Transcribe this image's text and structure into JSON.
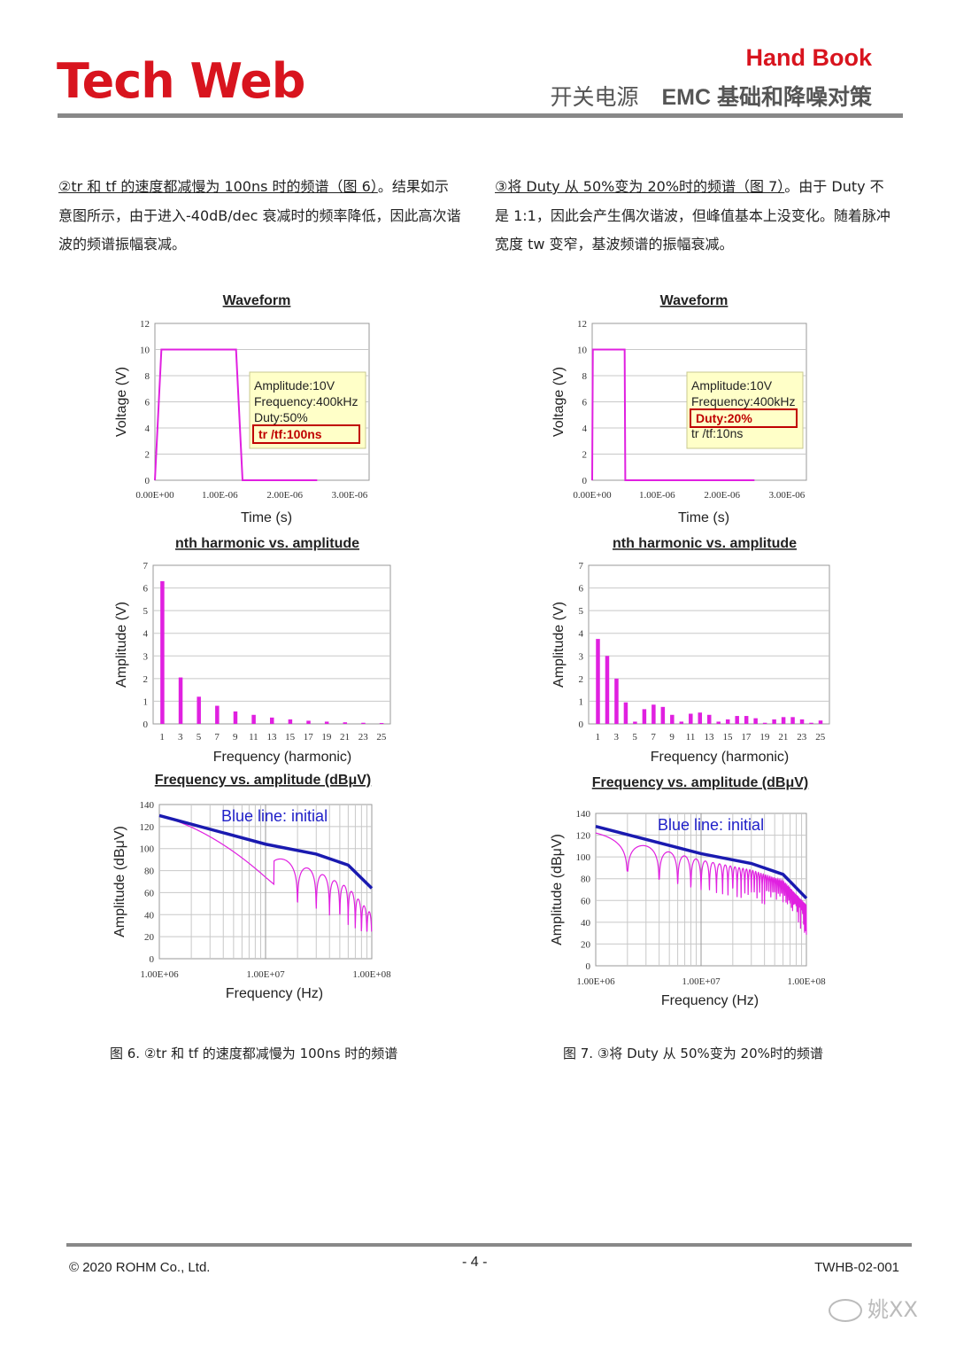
{
  "header": {
    "logo": "Tech Web",
    "title": "Hand Book",
    "subtitle_a": "开关电源",
    "subtitle_b": "EMC 基础和降噪对策"
  },
  "paragraphs": {
    "left": {
      "lead": "②tr 和 tf 的速度都减慢为 100ns 时的频谱（图 6）",
      "body": "。结果如示意图所示，由于进入-40dB/dec 衰减时的频率降低，因此高次谐波的频谱振幅衰减。"
    },
    "right": {
      "lead": "③将 Duty 从 50%变为 20%时的频谱（图 7）",
      "body": "。由于 Duty 不是 1:1，因此会产生偶次谐波，但峰值基本上没变化。随着脉冲宽度 tw 变窄，基波频谱的振幅衰减。"
    }
  },
  "figures": [
    {
      "caption": "图 6. ②tr 和 tf 的速度都减慢为 100ns 时的频谱",
      "waveform": {
        "title": "Waveform",
        "xlabel": "Time (s)",
        "ylabel": "Voltage (V)",
        "yticks": [
          "12",
          "10",
          "8",
          "6",
          "4",
          "2",
          "0"
        ],
        "xticks": [
          "0.00E+00",
          "1.00E-06",
          "2.00E-06",
          "3.00E-06"
        ],
        "ann": [
          "Amplitude:10V",
          "Frequency:400kHz",
          "Duty:50%"
        ],
        "ann_hi": "tr /tf:100ns"
      },
      "harmonic": {
        "title": "nth harmonic vs. amplitude",
        "xlabel": "Frequency (harmonic)",
        "ylabel": "Amplitude (V)",
        "yticks": [
          "7",
          "6",
          "5",
          "4",
          "3",
          "2",
          "1",
          "0"
        ],
        "xticks": [
          "1",
          "3",
          "5",
          "7",
          "9",
          "11",
          "13",
          "15",
          "17",
          "19",
          "21",
          "23",
          "25"
        ]
      },
      "spectrum": {
        "title": "Frequency vs. amplitude (dBμV)",
        "xlabel": "Frequency (Hz)",
        "ylabel": "Amplitude (dBμV)",
        "yticks": [
          "140",
          "120",
          "100",
          "80",
          "60",
          "40",
          "20",
          "0"
        ],
        "xticks": [
          "1.00E+06",
          "1.00E+07",
          "1.00E+08"
        ],
        "legend": "Blue line: initial"
      }
    },
    {
      "caption": "图 7. ③将 Duty 从 50%变为 20%时的频谱",
      "waveform": {
        "title": "Waveform",
        "xlabel": "Time (s)",
        "ylabel": "Voltage (V)",
        "yticks": [
          "12",
          "10",
          "8",
          "6",
          "4",
          "2",
          "0"
        ],
        "xticks": [
          "0.00E+00",
          "1.00E-06",
          "2.00E-06",
          "3.00E-06"
        ],
        "ann": [
          "Amplitude:10V",
          "Frequency:400kHz",
          "tr /tf:10ns"
        ],
        "ann_hi": "Duty:20%"
      },
      "harmonic": {
        "title": "nth harmonic vs. amplitude",
        "xlabel": "Frequency (harmonic)",
        "ylabel": "Amplitude (V)",
        "yticks": [
          "7",
          "6",
          "5",
          "4",
          "3",
          "2",
          "1",
          "0"
        ],
        "xticks": [
          "1",
          "3",
          "5",
          "7",
          "9",
          "11",
          "13",
          "15",
          "17",
          "19",
          "21",
          "23",
          "25"
        ]
      },
      "spectrum": {
        "title": "Frequency vs. amplitude (dBμV)",
        "xlabel": "Frequency (Hz)",
        "ylabel": "Amplitude (dBμV)",
        "yticks": [
          "140",
          "120",
          "100",
          "80",
          "60",
          "40",
          "20",
          "0"
        ],
        "xticks": [
          "1.00E+06",
          "1.00E+07",
          "1.00E+08"
        ],
        "legend": "Blue line: initial"
      }
    }
  ],
  "chart_data": [
    {
      "type": "line",
      "chart": "fig6-waveform",
      "x_unit": "s",
      "ylim": [
        0,
        12
      ],
      "xlim": [
        0,
        3.3e-06
      ],
      "x": [
        0,
        1e-07,
        1.25e-06,
        1.35e-06,
        2.5e-06
      ],
      "values": [
        0,
        10,
        10,
        0,
        0
      ]
    },
    {
      "type": "bar",
      "chart": "fig6-harmonic",
      "ylim": [
        0,
        7
      ],
      "categories": [
        1,
        2,
        3,
        4,
        5,
        6,
        7,
        8,
        9,
        10,
        11,
        12,
        13,
        14,
        15,
        16,
        17,
        18,
        19,
        20,
        21,
        22,
        23,
        24,
        25
      ],
      "values": [
        6.3,
        0,
        2.05,
        0,
        1.2,
        0,
        0.8,
        0,
        0.55,
        0,
        0.4,
        0,
        0.28,
        0,
        0.2,
        0,
        0.14,
        0,
        0.1,
        0,
        0.07,
        0,
        0.05,
        0,
        0.04
      ]
    },
    {
      "type": "line",
      "chart": "fig6-spectrum",
      "x_scale": "log",
      "xlim": [
        1000000.0,
        100000000.0
      ],
      "ylim": [
        0,
        140
      ],
      "series": [
        {
          "name": "Blue line: initial",
          "x": [
            1000000.0,
            10000000.0,
            30000000.0,
            60000000.0,
            100000000.0
          ],
          "values": [
            130,
            104,
            95,
            85,
            64
          ]
        }
      ]
    },
    {
      "type": "line",
      "chart": "fig7-waveform",
      "x_unit": "s",
      "ylim": [
        0,
        12
      ],
      "xlim": [
        0,
        3.3e-06
      ],
      "x": [
        0,
        1e-08,
        5e-07,
        5.1e-07,
        2.5e-06
      ],
      "values": [
        0,
        10,
        10,
        0,
        0
      ]
    },
    {
      "type": "bar",
      "chart": "fig7-harmonic",
      "ylim": [
        0,
        7
      ],
      "categories": [
        1,
        2,
        3,
        4,
        5,
        6,
        7,
        8,
        9,
        10,
        11,
        12,
        13,
        14,
        15,
        16,
        17,
        18,
        19,
        20,
        21,
        22,
        23,
        24,
        25
      ],
      "values": [
        3.75,
        3.0,
        2.0,
        0.95,
        0.1,
        0.65,
        0.85,
        0.75,
        0.4,
        0.1,
        0.45,
        0.5,
        0.4,
        0.1,
        0.2,
        0.35,
        0.35,
        0.25,
        0.05,
        0.2,
        0.3,
        0.3,
        0.2,
        0.05,
        0.15
      ]
    },
    {
      "type": "line",
      "chart": "fig7-spectrum",
      "x_scale": "log",
      "xlim": [
        1000000.0,
        100000000.0
      ],
      "ylim": [
        0,
        140
      ],
      "series": [
        {
          "name": "Blue line: initial",
          "x": [
            1000000.0,
            10000000.0,
            30000000.0,
            60000000.0,
            100000000.0
          ],
          "values": [
            128,
            103,
            94,
            84,
            62
          ]
        }
      ]
    }
  ],
  "footer": {
    "copyright": "© 2020 ROHM Co., Ltd.",
    "page": "- 4 -",
    "doc_id": "TWHB-02-001",
    "watermark": "姚XX"
  },
  "colors": {
    "brand": "#d8141e",
    "magenta": "#e020e0",
    "blue": "#1a1ab0",
    "grid": "#c8c8c8",
    "ann_bg": "#ffffc8"
  }
}
